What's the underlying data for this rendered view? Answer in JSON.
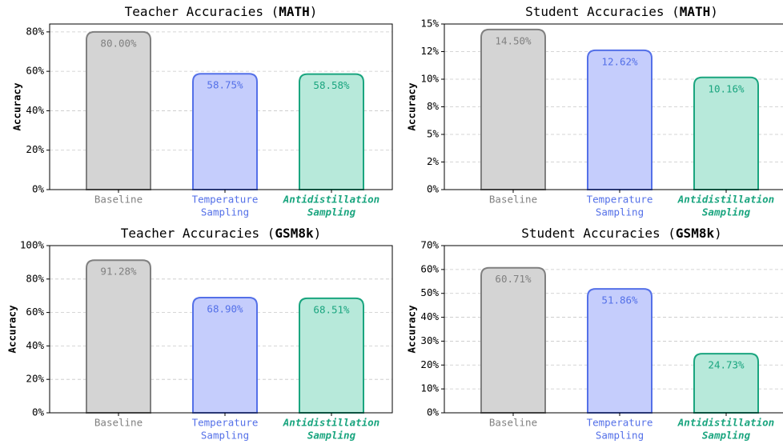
{
  "chart_data": [
    {
      "type": "bar",
      "title": [
        {
          "text": "Teacher Accuracies ("
        },
        {
          "text": "MATH",
          "bold": true
        },
        {
          "text": ")"
        }
      ],
      "ylabel": "Accuracy",
      "categories": [
        [
          "Baseline"
        ],
        [
          "Temperature",
          "Sampling"
        ],
        [
          "Antidistillation",
          "Sampling"
        ]
      ],
      "values": [
        80.0,
        58.75,
        58.58
      ],
      "value_labels": [
        "80.00%",
        "58.75%",
        "58.58%"
      ],
      "colors": [
        "#d4d4d4",
        "#c5cdfc",
        "#b7e9da"
      ],
      "edge_colors": [
        "#808080",
        "#5470e8",
        "#1aa57f"
      ],
      "emphasized_category": 2,
      "ylim": [
        0,
        84
      ],
      "yticks": [
        {
          "value": 0,
          "label": "0%"
        },
        {
          "value": 20,
          "label": "20%"
        },
        {
          "value": 40,
          "label": "40%"
        },
        {
          "value": 60,
          "label": "60%"
        },
        {
          "value": 80,
          "label": "80%"
        }
      ],
      "grid": true
    },
    {
      "type": "bar",
      "title": [
        {
          "text": "Student Accuracies ("
        },
        {
          "text": "MATH",
          "bold": true
        },
        {
          "text": ")"
        }
      ],
      "ylabel": "Accuracy",
      "categories": [
        [
          "Baseline"
        ],
        [
          "Temperature",
          "Sampling"
        ],
        [
          "Antidistillation",
          "Sampling"
        ]
      ],
      "values": [
        14.5,
        12.62,
        10.16
      ],
      "value_labels": [
        "14.50%",
        "12.62%",
        "10.16%"
      ],
      "colors": [
        "#d4d4d4",
        "#c5cdfc",
        "#b7e9da"
      ],
      "edge_colors": [
        "#808080",
        "#5470e8",
        "#1aa57f"
      ],
      "emphasized_category": 2,
      "ylim": [
        0,
        15
      ],
      "yticks": [
        {
          "value": 0,
          "label": "0%"
        },
        {
          "value": 2.5,
          "label": "2%"
        },
        {
          "value": 5,
          "label": "5%"
        },
        {
          "value": 7.5,
          "label": "8%"
        },
        {
          "value": 10,
          "label": "10%"
        },
        {
          "value": 12.5,
          "label": "12%"
        },
        {
          "value": 15,
          "label": "15%"
        }
      ],
      "grid": true
    },
    {
      "type": "bar",
      "title": [
        {
          "text": "Teacher Accuracies ("
        },
        {
          "text": "GSM8k",
          "bold": true
        },
        {
          "text": ")"
        }
      ],
      "ylabel": "Accuracy",
      "categories": [
        [
          "Baseline"
        ],
        [
          "Temperature",
          "Sampling"
        ],
        [
          "Antidistillation",
          "Sampling"
        ]
      ],
      "values": [
        91.28,
        68.9,
        68.51
      ],
      "value_labels": [
        "91.28%",
        "68.90%",
        "68.51%"
      ],
      "colors": [
        "#d4d4d4",
        "#c5cdfc",
        "#b7e9da"
      ],
      "edge_colors": [
        "#808080",
        "#5470e8",
        "#1aa57f"
      ],
      "emphasized_category": 2,
      "ylim": [
        0,
        100
      ],
      "yticks": [
        {
          "value": 0,
          "label": "0%"
        },
        {
          "value": 20,
          "label": "20%"
        },
        {
          "value": 40,
          "label": "40%"
        },
        {
          "value": 60,
          "label": "60%"
        },
        {
          "value": 80,
          "label": "80%"
        },
        {
          "value": 100,
          "label": "100%"
        }
      ],
      "grid": true
    },
    {
      "type": "bar",
      "title": [
        {
          "text": "Student Accuracies ("
        },
        {
          "text": "GSM8k",
          "bold": true
        },
        {
          "text": ")"
        }
      ],
      "ylabel": "Accuracy",
      "categories": [
        [
          "Baseline"
        ],
        [
          "Temperature",
          "Sampling"
        ],
        [
          "Antidistillation",
          "Sampling"
        ]
      ],
      "values": [
        60.71,
        51.86,
        24.73
      ],
      "value_labels": [
        "60.71%",
        "51.86%",
        "24.73%"
      ],
      "colors": [
        "#d4d4d4",
        "#c5cdfc",
        "#b7e9da"
      ],
      "edge_colors": [
        "#808080",
        "#5470e8",
        "#1aa57f"
      ],
      "emphasized_category": 2,
      "ylim": [
        0,
        70
      ],
      "yticks": [
        {
          "value": 0,
          "label": "0%"
        },
        {
          "value": 10,
          "label": "10%"
        },
        {
          "value": 20,
          "label": "20%"
        },
        {
          "value": 30,
          "label": "30%"
        },
        {
          "value": 40,
          "label": "40%"
        },
        {
          "value": 50,
          "label": "50%"
        },
        {
          "value": 60,
          "label": "60%"
        },
        {
          "value": 70,
          "label": "70%"
        }
      ],
      "grid": true
    }
  ]
}
